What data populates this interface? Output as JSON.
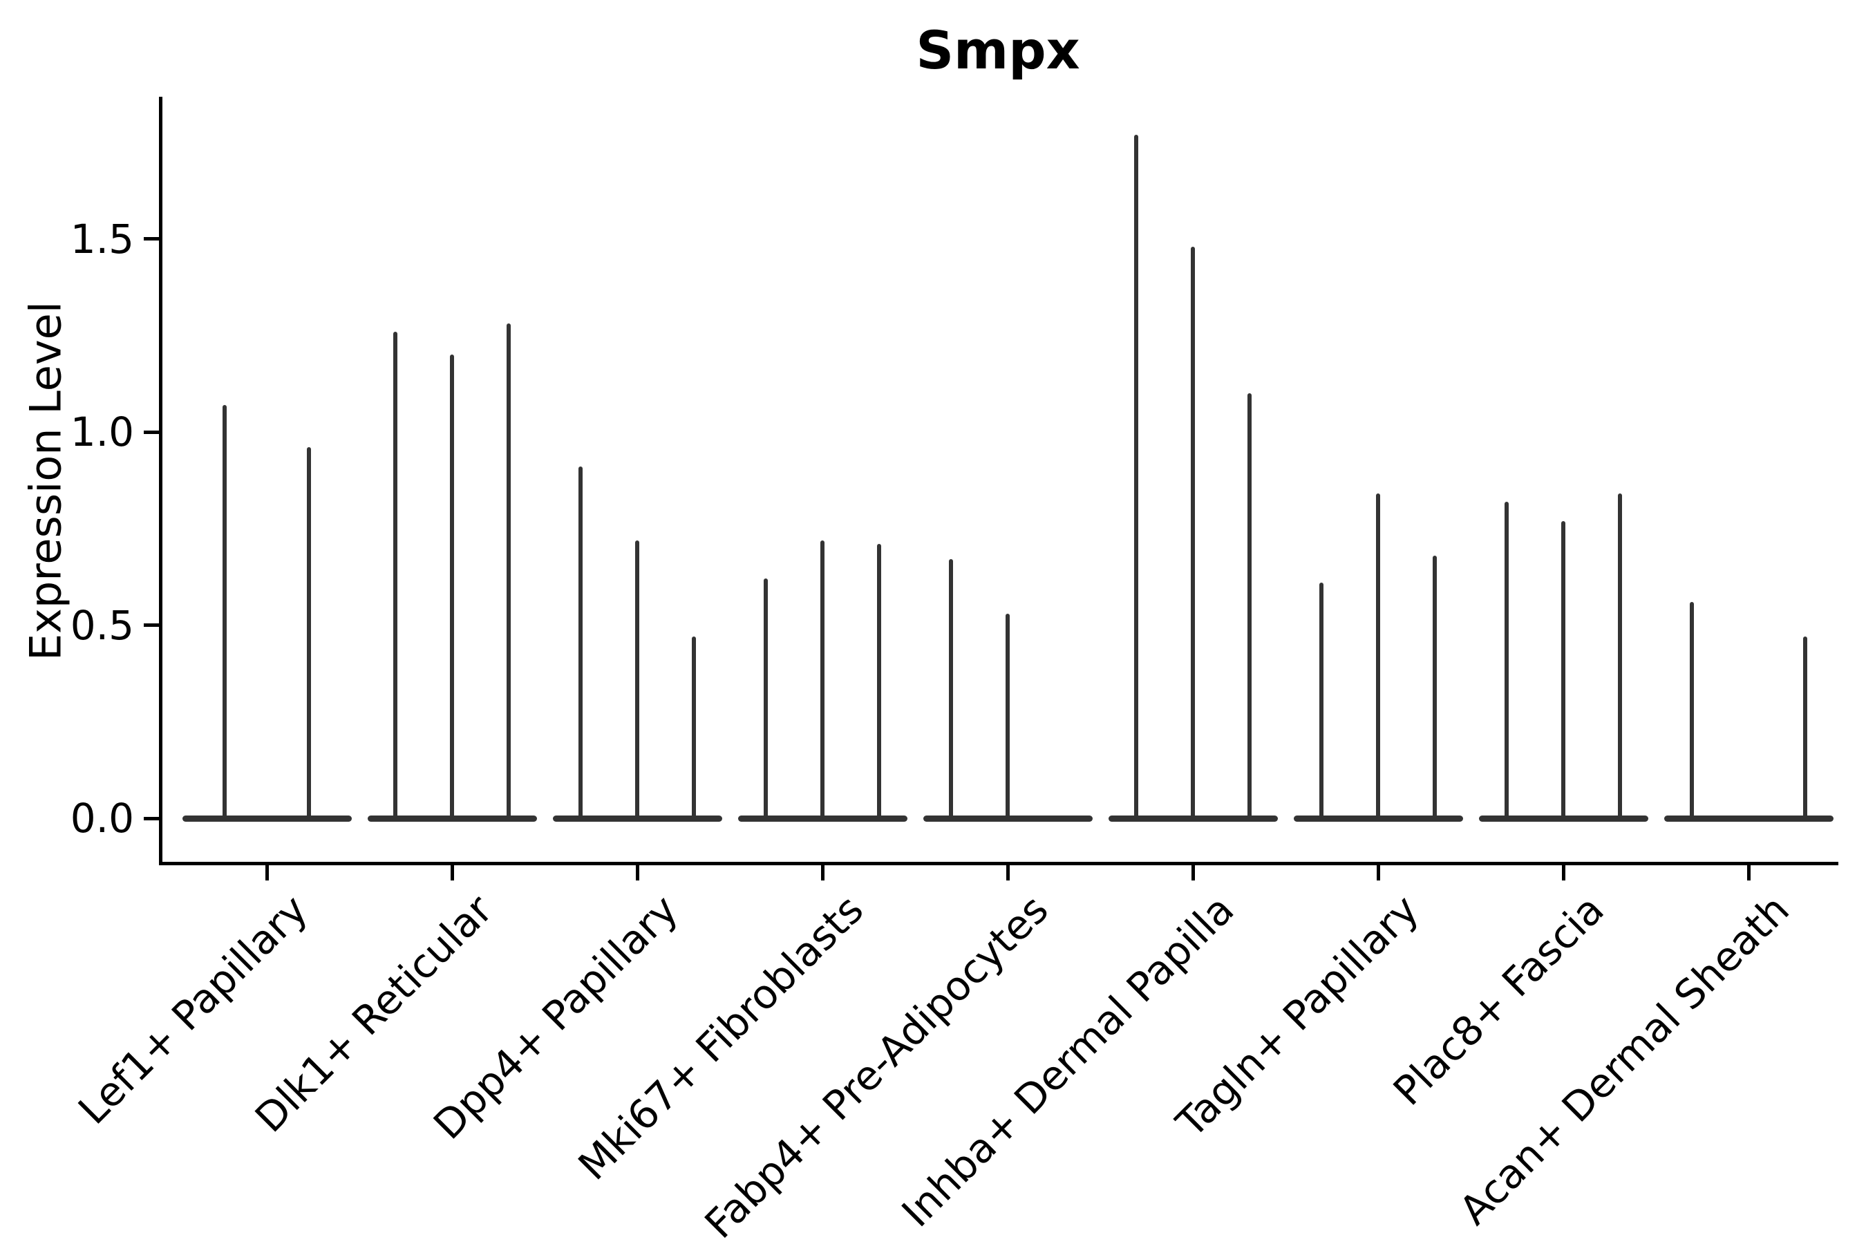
{
  "chart_data": {
    "type": "violin",
    "title": "Smpx",
    "ylabel": "Expression Level",
    "xlabel": "",
    "ytick_labels": [
      "0.0",
      "0.5",
      "1.0",
      "1.5"
    ],
    "ytick_values": [
      0.0,
      0.5,
      1.0,
      1.5
    ],
    "ylim": [
      -0.12,
      1.87
    ],
    "grid": false,
    "legend": false,
    "categories": [
      "Lef1+ Papillary",
      "Dlk1+ Reticular",
      "Dpp4+ Papillary",
      "Mki67+ Fibroblasts",
      "Fabp4+ Pre-Adipocytes",
      "Inhba+ Dermal Papilla",
      "Tagln+ Papillary",
      "Plac8+ Fascia",
      "Acan+ Dermal Sheath"
    ],
    "violins": [
      {
        "category": "Lef1+ Papillary",
        "values": [
          1.07,
          0.96
        ]
      },
      {
        "category": "Dlk1+ Reticular",
        "values": [
          1.26,
          1.2,
          1.28
        ]
      },
      {
        "category": "Dpp4+ Papillary",
        "values": [
          0.91,
          0.72,
          0.47
        ]
      },
      {
        "category": "Mki67+ Fibroblasts",
        "values": [
          0.62,
          0.72,
          0.71
        ]
      },
      {
        "category": "Fabp4+ Pre-Adipocytes",
        "values": [
          0.67,
          0.53,
          0.0
        ]
      },
      {
        "category": "Inhba+ Dermal Papilla",
        "values": [
          1.77,
          1.48,
          1.1
        ]
      },
      {
        "category": "Tagln+ Papillary",
        "values": [
          0.61,
          0.84,
          0.68
        ]
      },
      {
        "category": "Plac8+ Fascia",
        "values": [
          0.82,
          0.77,
          0.84
        ]
      },
      {
        "category": "Acan+ Dermal Sheath",
        "values": [
          0.56,
          0.0,
          0.47
        ]
      }
    ],
    "colors": {
      "spike": "#333333",
      "axis": "#000000",
      "background": "#ffffff"
    }
  }
}
